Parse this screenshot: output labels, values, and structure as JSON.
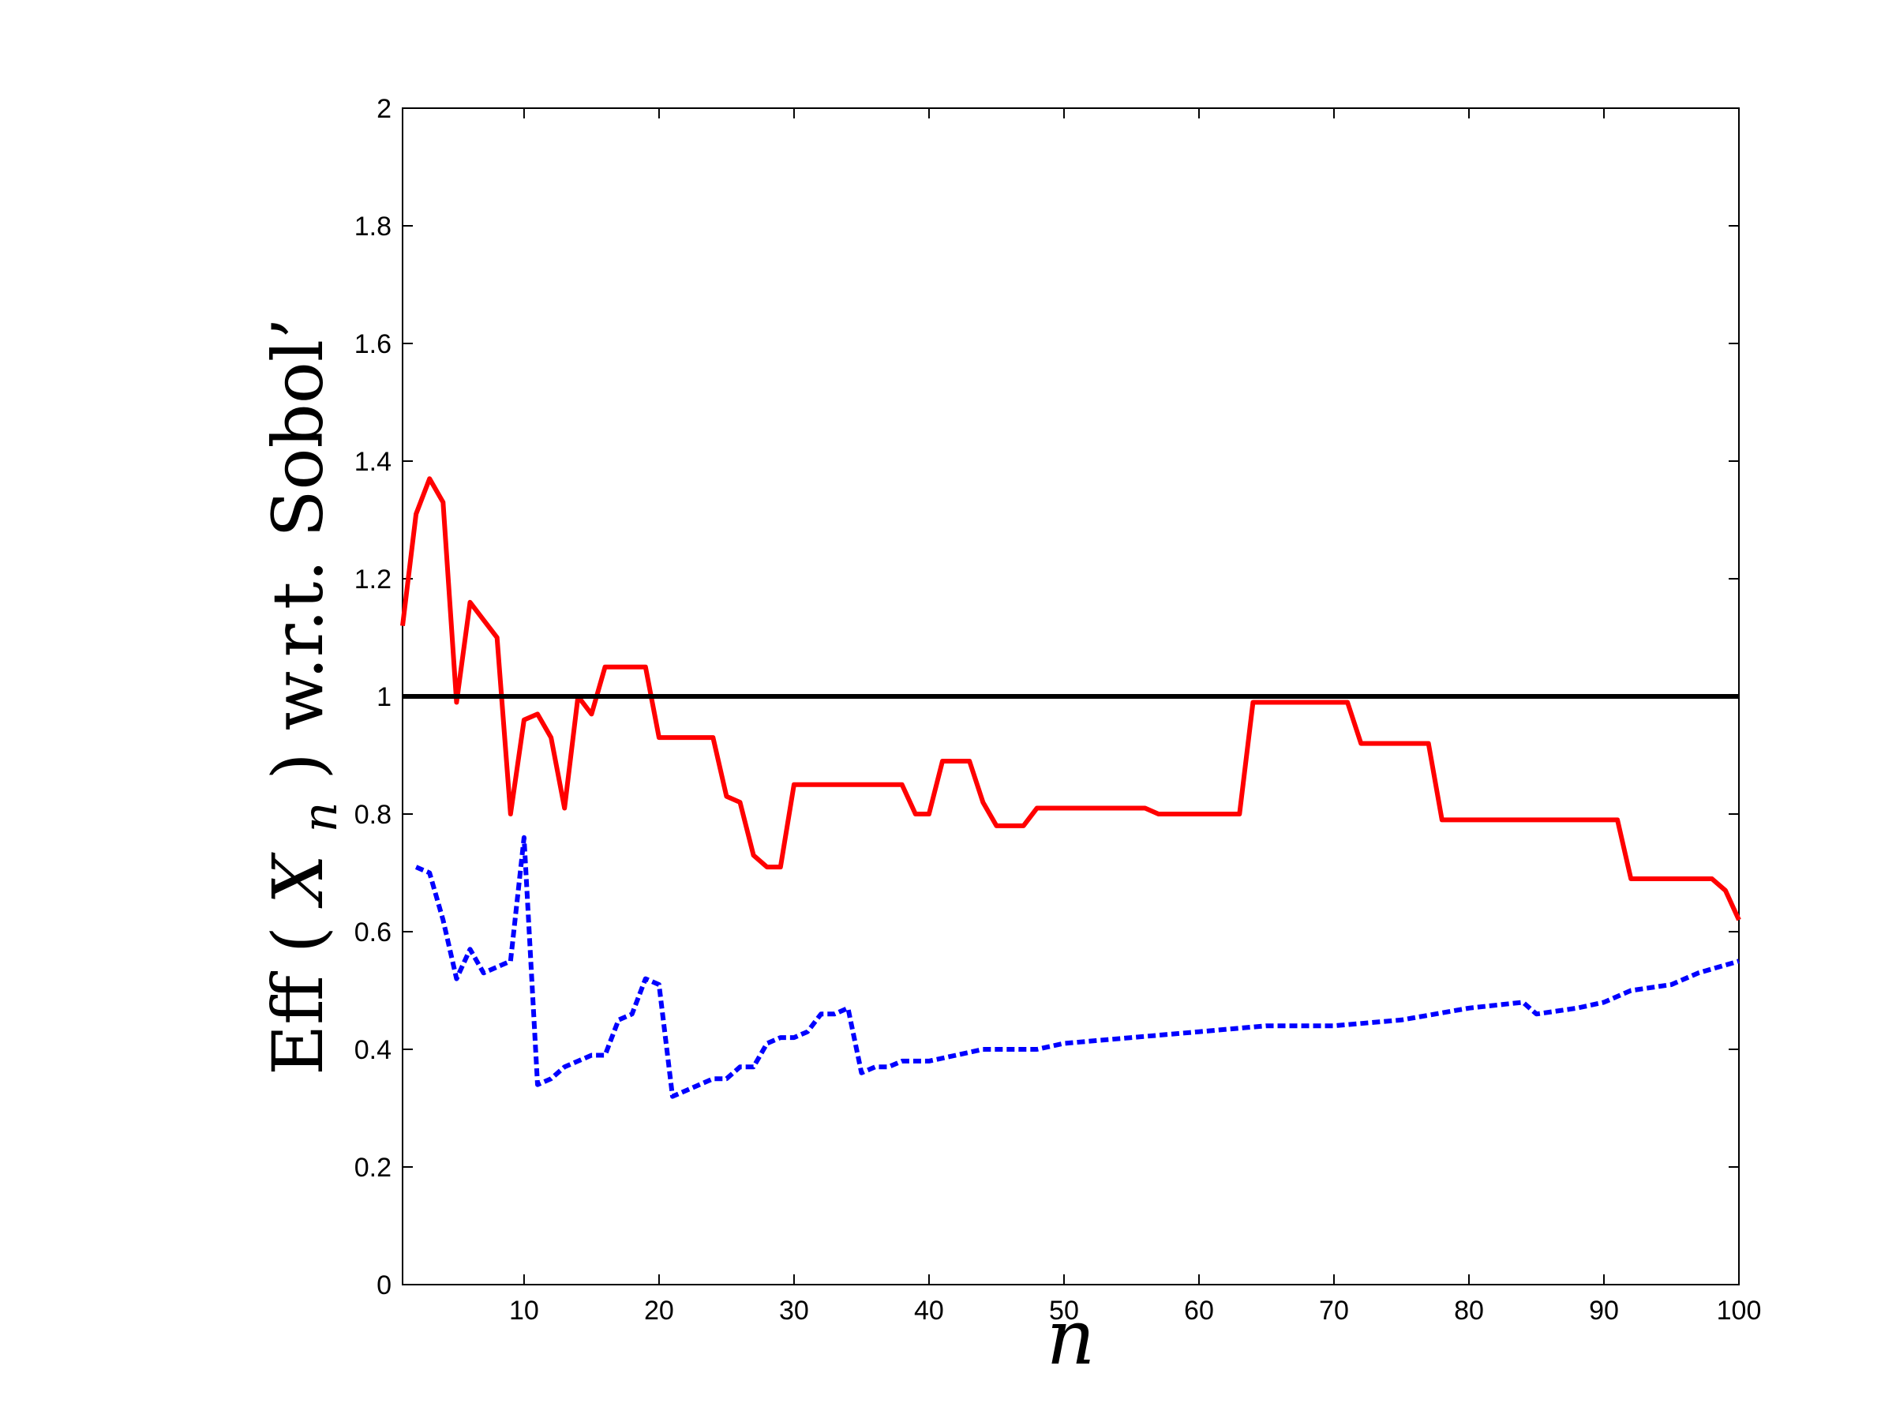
{
  "chart_data": {
    "type": "line",
    "title": "",
    "xlabel": "n",
    "ylabel_prefix": "Eff",
    "ylabel_var": "X",
    "ylabel_sub": "n",
    "ylabel_suffix": "w.r.t. Sobol’",
    "xlim": [
      1,
      100
    ],
    "ylim": [
      0,
      2
    ],
    "grid": false,
    "x_ticks": [
      10,
      20,
      30,
      40,
      50,
      60,
      70,
      80,
      90,
      100
    ],
    "y_ticks": [
      0,
      0.2,
      0.4,
      0.6,
      0.8,
      1,
      1.2,
      1.4,
      1.6,
      1.8,
      2
    ],
    "y_tick_labels": [
      "0",
      "0.2",
      "0.4",
      "0.6",
      "0.8",
      "1",
      "1.2",
      "1.4",
      "1.6",
      "1.8",
      "2"
    ],
    "reference_line": {
      "y": 1,
      "color": "#000000"
    },
    "series": [
      {
        "color": "#ff0000",
        "style": "solid",
        "points": [
          [
            1,
            1.12
          ],
          [
            2,
            1.31
          ],
          [
            3,
            1.37
          ],
          [
            4,
            1.33
          ],
          [
            5,
            0.99
          ],
          [
            6,
            1.16
          ],
          [
            7,
            1.13
          ],
          [
            8,
            1.1
          ],
          [
            9,
            0.8
          ],
          [
            10,
            0.96
          ],
          [
            11,
            0.97
          ],
          [
            12,
            0.93
          ],
          [
            13,
            0.81
          ],
          [
            14,
            1.0
          ],
          [
            15,
            0.97
          ],
          [
            16,
            1.05
          ],
          [
            17,
            1.05
          ],
          [
            18,
            1.05
          ],
          [
            19,
            1.05
          ],
          [
            20,
            0.93
          ],
          [
            21,
            0.93
          ],
          [
            22,
            0.93
          ],
          [
            23,
            0.93
          ],
          [
            24,
            0.93
          ],
          [
            25,
            0.83
          ],
          [
            26,
            0.82
          ],
          [
            27,
            0.73
          ],
          [
            28,
            0.71
          ],
          [
            29,
            0.71
          ],
          [
            30,
            0.85
          ],
          [
            31,
            0.85
          ],
          [
            32,
            0.85
          ],
          [
            33,
            0.85
          ],
          [
            34,
            0.85
          ],
          [
            35,
            0.85
          ],
          [
            36,
            0.85
          ],
          [
            37,
            0.85
          ],
          [
            38,
            0.85
          ],
          [
            39,
            0.8
          ],
          [
            40,
            0.8
          ],
          [
            41,
            0.89
          ],
          [
            42,
            0.89
          ],
          [
            43,
            0.89
          ],
          [
            44,
            0.82
          ],
          [
            45,
            0.78
          ],
          [
            46,
            0.78
          ],
          [
            47,
            0.78
          ],
          [
            48,
            0.81
          ],
          [
            49,
            0.81
          ],
          [
            50,
            0.81
          ],
          [
            56,
            0.81
          ],
          [
            57,
            0.8
          ],
          [
            63,
            0.8
          ],
          [
            64,
            0.99
          ],
          [
            71,
            0.99
          ],
          [
            72,
            0.92
          ],
          [
            77,
            0.92
          ],
          [
            78,
            0.79
          ],
          [
            91,
            0.79
          ],
          [
            92,
            0.69
          ],
          [
            98,
            0.69
          ],
          [
            99,
            0.67
          ],
          [
            100,
            0.62
          ]
        ]
      },
      {
        "color": "#0000ff",
        "style": "dotted",
        "points": [
          [
            2,
            0.71
          ],
          [
            3,
            0.7
          ],
          [
            4,
            0.62
          ],
          [
            5,
            0.52
          ],
          [
            6,
            0.57
          ],
          [
            7,
            0.53
          ],
          [
            8,
            0.54
          ],
          [
            9,
            0.55
          ],
          [
            10,
            0.76
          ],
          [
            11,
            0.34
          ],
          [
            12,
            0.35
          ],
          [
            13,
            0.37
          ],
          [
            14,
            0.38
          ],
          [
            15,
            0.39
          ],
          [
            16,
            0.39
          ],
          [
            17,
            0.45
          ],
          [
            18,
            0.46
          ],
          [
            19,
            0.52
          ],
          [
            20,
            0.51
          ],
          [
            21,
            0.32
          ],
          [
            22,
            0.33
          ],
          [
            23,
            0.34
          ],
          [
            24,
            0.35
          ],
          [
            25,
            0.35
          ],
          [
            26,
            0.37
          ],
          [
            27,
            0.37
          ],
          [
            28,
            0.41
          ],
          [
            29,
            0.42
          ],
          [
            30,
            0.42
          ],
          [
            31,
            0.43
          ],
          [
            32,
            0.46
          ],
          [
            33,
            0.46
          ],
          [
            34,
            0.47
          ],
          [
            35,
            0.36
          ],
          [
            36,
            0.37
          ],
          [
            37,
            0.37
          ],
          [
            38,
            0.38
          ],
          [
            40,
            0.38
          ],
          [
            42,
            0.39
          ],
          [
            44,
            0.4
          ],
          [
            48,
            0.4
          ],
          [
            50,
            0.41
          ],
          [
            55,
            0.42
          ],
          [
            60,
            0.43
          ],
          [
            65,
            0.44
          ],
          [
            70,
            0.44
          ],
          [
            75,
            0.45
          ],
          [
            80,
            0.47
          ],
          [
            84,
            0.48
          ],
          [
            85,
            0.46
          ],
          [
            88,
            0.47
          ],
          [
            90,
            0.48
          ],
          [
            92,
            0.5
          ],
          [
            95,
            0.51
          ],
          [
            97,
            0.53
          ],
          [
            100,
            0.55
          ]
        ]
      }
    ]
  }
}
